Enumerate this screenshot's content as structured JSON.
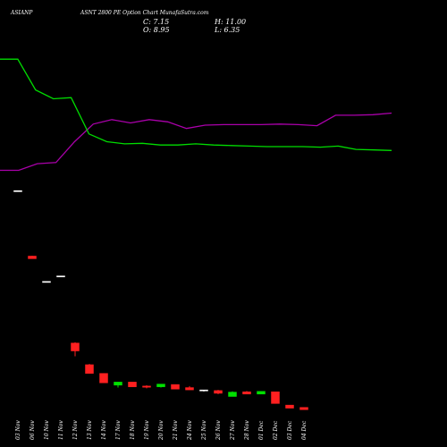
{
  "header": {
    "symbol": "ASIANP",
    "subtitle": "ASNT 2800  PE Option  Chart MunafaSutra.com",
    "close": "C: 7.15",
    "open": "O: 8.95",
    "high": "H: 11.00",
    "low": "L: 6.35"
  },
  "colors": {
    "background": "#000000",
    "text": "#ffffff",
    "up": "#00e000",
    "down": "#ff2020",
    "line_green": "#00dd00",
    "line_purple": "#aa00aa"
  },
  "chart_data": {
    "type": "candlestick",
    "categories": [
      "03 Nov",
      "06 Nov",
      "10 Nov",
      "11 Nov",
      "12 Nov",
      "13 Nov",
      "14 Nov",
      "17 Nov",
      "18 Nov",
      "19 Nov",
      "20 Nov",
      "21 Nov",
      "24 Nov",
      "25 Nov",
      "26 Nov",
      "27 Nov",
      "28 Nov",
      "01 Dec",
      "02 Dec",
      "03 Dec",
      "04 Dec"
    ],
    "candles": [
      {
        "o": 180.5,
        "h": 180.5,
        "l": 180.0,
        "c": 180.0,
        "dir": "flat"
      },
      {
        "o": 121.0,
        "h": 121.3,
        "l": 118.6,
        "c": 118.6,
        "dir": "down"
      },
      {
        "o": 98.0,
        "h": 98.0,
        "l": 97.5,
        "c": 97.5,
        "dir": "flat"
      },
      {
        "o": 103.0,
        "h": 103.0,
        "l": 102.4,
        "c": 102.4,
        "dir": "flat"
      },
      {
        "o": 42.0,
        "h": 42.7,
        "l": 30.0,
        "c": 34.8,
        "dir": "down"
      },
      {
        "o": 22.3,
        "h": 23.0,
        "l": 14.4,
        "c": 14.4,
        "dir": "down"
      },
      {
        "o": 14.4,
        "h": 14.4,
        "l": 5.8,
        "c": 5.8,
        "dir": "down"
      },
      {
        "o": 3.7,
        "h": 6.5,
        "l": 1.5,
        "c": 6.5,
        "dir": "up"
      },
      {
        "o": 6.5,
        "h": 6.5,
        "l": 2.2,
        "c": 2.2,
        "dir": "down"
      },
      {
        "o": 2.9,
        "h": 3.6,
        "l": 0.8,
        "c": 1.8,
        "dir": "down"
      },
      {
        "o": 2.2,
        "h": 4.7,
        "l": 1.5,
        "c": 4.7,
        "dir": "up"
      },
      {
        "o": 4.3,
        "h": 4.3,
        "l": 0.1,
        "c": 0.1,
        "dir": "down"
      },
      {
        "o": 1.5,
        "h": 2.9,
        "l": -0.6,
        "c": -0.6,
        "dir": "down"
      },
      {
        "o": -0.6,
        "h": -0.6,
        "l": -2.0,
        "c": -1.2,
        "dir": "flat"
      },
      {
        "o": -1.2,
        "h": -0.6,
        "l": -4.5,
        "c": -3.7,
        "dir": "down"
      },
      {
        "o": -6.6,
        "h": -1.9,
        "l": -6.6,
        "c": -2.6,
        "dir": "up"
      },
      {
        "o": -2.3,
        "h": -1.6,
        "l": -4.4,
        "c": -4.4,
        "dir": "down"
      },
      {
        "o": -4.4,
        "h": -1.9,
        "l": -4.4,
        "c": -1.9,
        "dir": "up"
      },
      {
        "o": -2.3,
        "h": -2.3,
        "l": -13.0,
        "c": -13.0,
        "dir": "down"
      },
      {
        "o": -14.4,
        "h": -14.4,
        "l": -17.2,
        "c": -17.2,
        "dir": "down"
      },
      {
        "o": -16.5,
        "h": -16.5,
        "l": -18.6,
        "c": -18.6,
        "dir": "down"
      }
    ],
    "overlay_green": [
      300,
      300,
      272,
      264,
      265,
      232,
      225,
      223,
      223.5,
      222,
      222,
      223,
      222,
      221.5,
      221,
      220.5,
      220.5,
      220.5,
      220,
      221,
      218,
      217.5,
      217
    ],
    "overlay_purple": [
      199,
      199,
      205,
      206,
      225,
      241,
      245,
      242,
      245,
      243,
      237,
      240,
      240.5,
      240.5,
      240.5,
      241,
      240.5,
      239.5,
      249,
      249,
      249.5,
      251
    ],
    "ylim": [
      -20,
      305
    ]
  }
}
